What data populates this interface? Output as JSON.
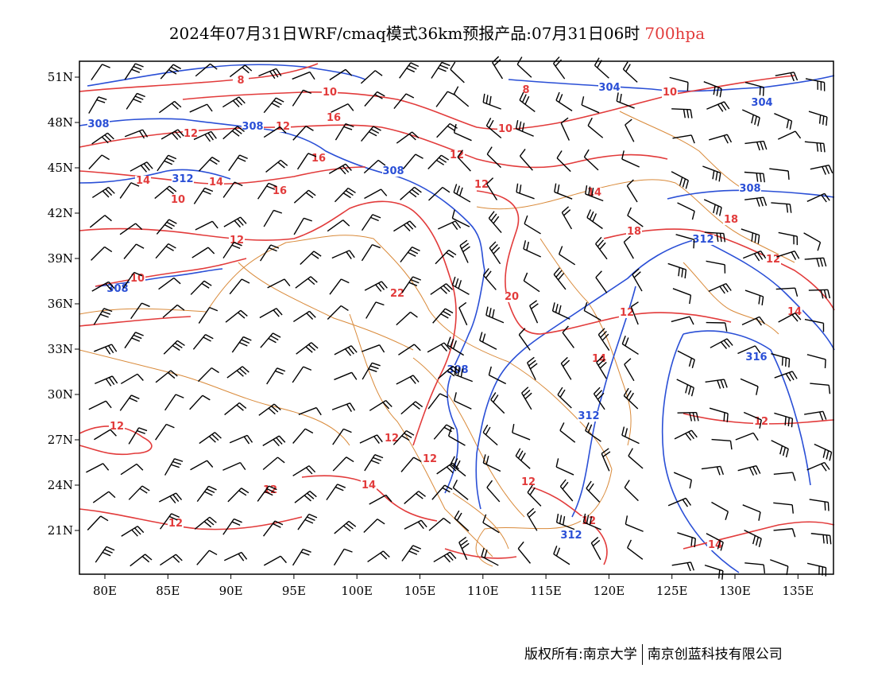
{
  "title": {
    "main": "2024年07月31日WRF/cmaq模式36km预报产品:07月31日06时",
    "level": "700hpa"
  },
  "footer": {
    "left": "版权所有:南京大学",
    "right": "南京创蓝科技有限公司"
  },
  "axes": {
    "lon_ticks": [
      "80E",
      "85E",
      "90E",
      "95E",
      "100E",
      "105E",
      "110E",
      "115E",
      "120E",
      "125E",
      "130E",
      "135E"
    ],
    "lat_ticks": [
      "51N",
      "48N",
      "45N",
      "42N",
      "39N",
      "36N",
      "33N",
      "30N",
      "27N",
      "24N",
      "21N"
    ]
  },
  "colors": {
    "temperature": "#e23b3b",
    "height": "#2a4fd6",
    "border": "#d98a3a"
  },
  "temperature_labels": [
    "8",
    "10",
    "12",
    "10",
    "8",
    "10",
    "16",
    "12",
    "14",
    "12",
    "16",
    "14",
    "16",
    "12",
    "14",
    "10",
    "18",
    "12",
    "10",
    "20",
    "22",
    "12",
    "18",
    "12",
    "14",
    "12",
    "14",
    "12",
    "12",
    "12",
    "14",
    "12",
    "12",
    "12",
    "12",
    "14"
  ],
  "height_labels": [
    "304",
    "304",
    "308",
    "308",
    "308",
    "312",
    "308",
    "312",
    "308",
    "308",
    "312",
    "312",
    "316"
  ]
}
